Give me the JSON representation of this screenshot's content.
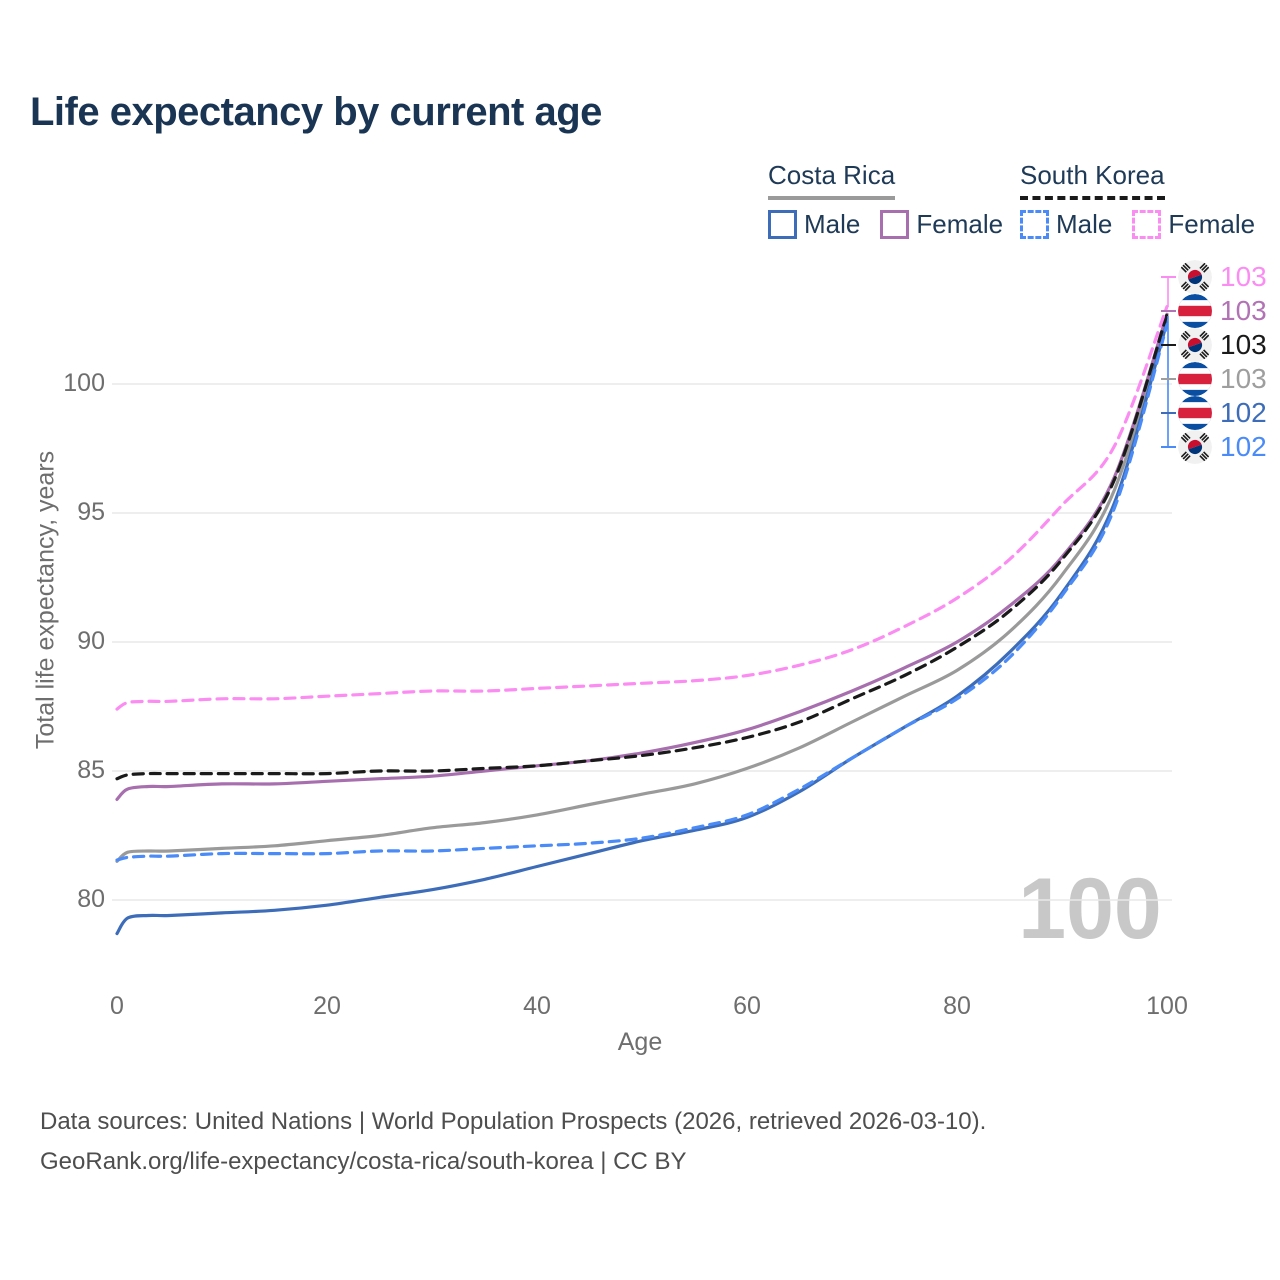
{
  "title": "Life expectancy by current age",
  "watermark": "100",
  "legend": {
    "groups": [
      {
        "label": "Costa Rica",
        "style": "solid",
        "items": [
          {
            "label": "Male"
          },
          {
            "label": "Female"
          }
        ]
      },
      {
        "label": "South Korea",
        "style": "dashed",
        "items": [
          {
            "label": "Male"
          },
          {
            "label": "Female"
          }
        ]
      }
    ]
  },
  "footer": {
    "line1": "Data sources: United Nations | World Population Prospects (2026, retrieved 2026-03-10).",
    "line2": "GeoRank.org/life-expectancy/costa-rica/south-korea | CC BY"
  },
  "chart_data": {
    "type": "line",
    "title": "Life expectancy by current age",
    "xlabel": "Age",
    "ylabel": "Total life expectancy, years",
    "xlim": [
      0,
      100
    ],
    "ylim": [
      77,
      105
    ],
    "grid": "horizontal-only",
    "legend_position": "top-right",
    "xticks": [
      0,
      20,
      40,
      60,
      80,
      100
    ],
    "yticks": [
      80,
      85,
      90,
      95,
      100
    ],
    "x": [
      0,
      1,
      3,
      5,
      10,
      15,
      20,
      25,
      30,
      35,
      40,
      45,
      50,
      55,
      60,
      65,
      70,
      75,
      80,
      85,
      90,
      95,
      100
    ],
    "series": [
      {
        "name": "South Korea Female",
        "country": "South Korea",
        "sex": "Female",
        "style": "dashed",
        "color": "#fb8df2",
        "end_value": 103,
        "values": [
          87.4,
          87.65,
          87.7,
          87.7,
          87.8,
          87.8,
          87.9,
          88.0,
          88.1,
          88.1,
          88.2,
          88.3,
          88.4,
          88.5,
          88.7,
          89.1,
          89.7,
          90.6,
          91.7,
          93.2,
          95.3,
          97.6,
          103.0
        ]
      },
      {
        "name": "Costa Rica Female",
        "country": "Costa Rica",
        "sex": "Female",
        "style": "solid",
        "color": "#a76fae",
        "end_value": 103,
        "values": [
          83.9,
          84.3,
          84.4,
          84.4,
          84.5,
          84.5,
          84.6,
          84.7,
          84.8,
          85.0,
          85.2,
          85.4,
          85.7,
          86.1,
          86.6,
          87.3,
          88.1,
          89.0,
          90.0,
          91.4,
          93.3,
          96.4,
          102.7
        ]
      },
      {
        "name": "South Korea Total",
        "country": "South Korea",
        "sex": "Both",
        "style": "dashed",
        "color": "#1a1a1a",
        "end_value": 103,
        "values": [
          84.7,
          84.85,
          84.9,
          84.9,
          84.9,
          84.9,
          84.9,
          85.0,
          85.0,
          85.1,
          85.2,
          85.4,
          85.6,
          85.9,
          86.3,
          86.9,
          87.8,
          88.7,
          89.8,
          91.2,
          93.2,
          96.3,
          102.7
        ]
      },
      {
        "name": "Costa Rica Total",
        "country": "Costa Rica",
        "sex": "Both",
        "style": "solid",
        "color": "#9a9a9a",
        "end_value": 103,
        "values": [
          81.5,
          81.85,
          81.9,
          81.9,
          82.0,
          82.1,
          82.3,
          82.5,
          82.8,
          83.0,
          83.3,
          83.7,
          84.1,
          84.5,
          85.1,
          85.9,
          86.9,
          87.9,
          88.9,
          90.4,
          92.6,
          95.9,
          102.5
        ]
      },
      {
        "name": "Costa Rica Male",
        "country": "Costa Rica",
        "sex": "Male",
        "style": "solid",
        "color": "#3d6db9",
        "end_value": 102,
        "values": [
          78.7,
          79.3,
          79.4,
          79.4,
          79.5,
          79.6,
          79.8,
          80.1,
          80.4,
          80.8,
          81.3,
          81.8,
          82.3,
          82.7,
          83.2,
          84.2,
          85.5,
          86.7,
          87.9,
          89.6,
          91.9,
          95.4,
          102.4
        ]
      },
      {
        "name": "South Korea Male",
        "country": "South Korea",
        "sex": "Male",
        "style": "dashed",
        "color": "#4a8bf7",
        "end_value": 102,
        "values": [
          81.55,
          81.65,
          81.7,
          81.7,
          81.8,
          81.8,
          81.8,
          81.9,
          81.9,
          82.0,
          82.1,
          82.2,
          82.4,
          82.8,
          83.3,
          84.3,
          85.5,
          86.7,
          87.8,
          89.4,
          91.8,
          95.2,
          102.3
        ]
      }
    ],
    "end_labels": [
      {
        "value": "103",
        "flag": "south-korea",
        "color": "#fb8df2"
      },
      {
        "value": "103",
        "flag": "costa-rica",
        "color": "#b273b5"
      },
      {
        "value": "103",
        "flag": "south-korea",
        "color": "#1a1a1a"
      },
      {
        "value": "103",
        "flag": "costa-rica",
        "color": "#9e9e9e"
      },
      {
        "value": "102",
        "flag": "costa-rica",
        "color": "#3d6db9"
      },
      {
        "value": "102",
        "flag": "south-korea",
        "color": "#4a8bf7"
      }
    ]
  }
}
